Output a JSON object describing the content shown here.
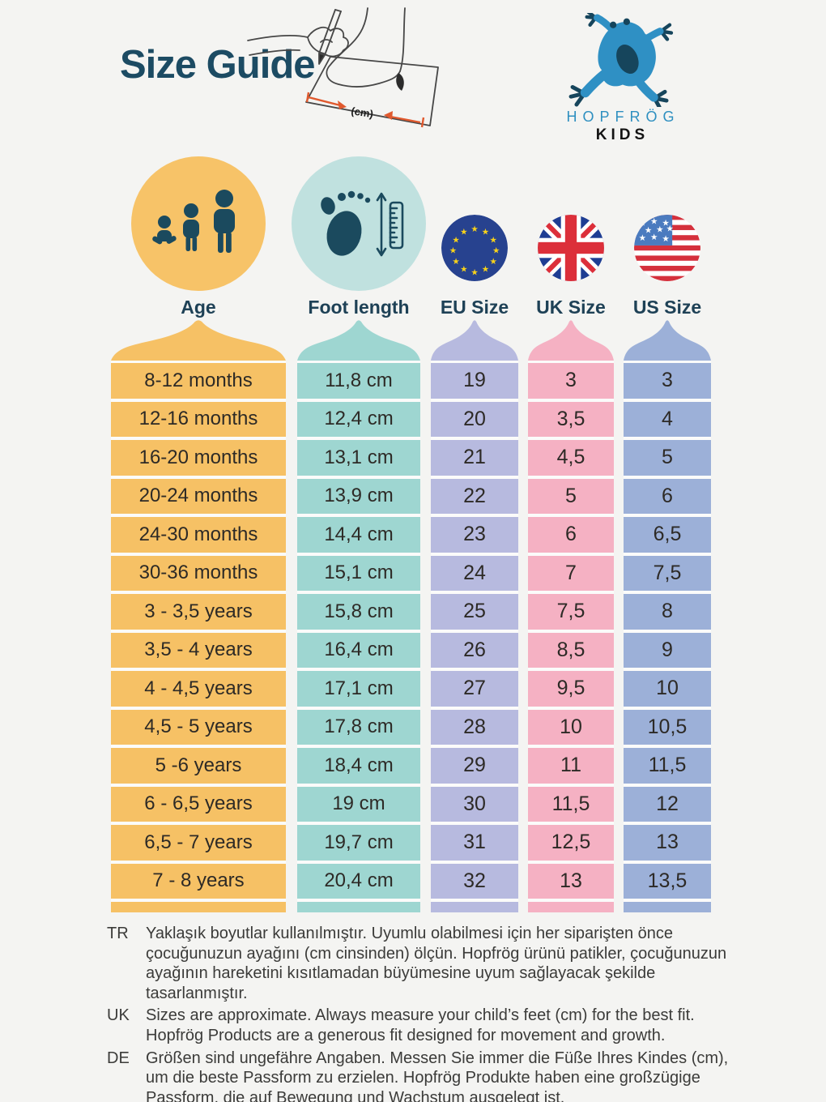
{
  "header": {
    "title": "Size Guide",
    "illustration": {
      "cm_label": "(cm)"
    },
    "brand": {
      "name": "HOPFRÖG",
      "sub": "KIDS"
    }
  },
  "table": {
    "columns": [
      {
        "key": "age",
        "label": "Age",
        "color": "#f6c165",
        "circle_color": "#f7c368",
        "icon": "family-icon",
        "big": true
      },
      {
        "key": "foot",
        "label": "Foot length",
        "color": "#9ed6d1",
        "circle_color": "#c0e1df",
        "icon": "foot-ruler-icon",
        "big": true
      },
      {
        "key": "eu",
        "label": "EU Size",
        "color": "#b7badf",
        "icon": "eu-flag-icon",
        "big": false
      },
      {
        "key": "uk",
        "label": "UK Size",
        "color": "#f5b1c3",
        "icon": "uk-flag-icon",
        "big": false
      },
      {
        "key": "us",
        "label": "US Size",
        "color": "#9cb0d8",
        "icon": "us-flag-icon",
        "big": false
      }
    ],
    "rows": [
      {
        "age": "8-12 months",
        "foot": "11,8 cm",
        "eu": "19",
        "uk": "3",
        "us": "3"
      },
      {
        "age": "12-16 months",
        "foot": "12,4 cm",
        "eu": "20",
        "uk": "3,5",
        "us": "4"
      },
      {
        "age": "16-20 months",
        "foot": "13,1 cm",
        "eu": "21",
        "uk": "4,5",
        "us": "5"
      },
      {
        "age": "20-24 months",
        "foot": "13,9 cm",
        "eu": "22",
        "uk": "5",
        "us": "6"
      },
      {
        "age": "24-30 months",
        "foot": "14,4 cm",
        "eu": "23",
        "uk": "6",
        "us": "6,5"
      },
      {
        "age": "30-36 months",
        "foot": "15,1 cm",
        "eu": "24",
        "uk": "7",
        "us": "7,5"
      },
      {
        "age": "3 - 3,5 years",
        "foot": "15,8 cm",
        "eu": "25",
        "uk": "7,5",
        "us": "8"
      },
      {
        "age": "3,5 - 4 years",
        "foot": "16,4 cm",
        "eu": "26",
        "uk": "8,5",
        "us": "9"
      },
      {
        "age": "4 - 4,5 years",
        "foot": "17,1 cm",
        "eu": "27",
        "uk": "9,5",
        "us": "10"
      },
      {
        "age": "4,5 - 5 years",
        "foot": "17,8 cm",
        "eu": "28",
        "uk": "10",
        "us": "10,5"
      },
      {
        "age": "5 -6 years",
        "foot": "18,4 cm",
        "eu": "29",
        "uk": "11",
        "us": "11,5"
      },
      {
        "age": "6 - 6,5 years",
        "foot": "19 cm",
        "eu": "30",
        "uk": "11,5",
        "us": "12"
      },
      {
        "age": "6,5 - 7 years",
        "foot": "19,7 cm",
        "eu": "31",
        "uk": "12,5",
        "us": "13"
      },
      {
        "age": "7 - 8 years",
        "foot": "20,4 cm",
        "eu": "32",
        "uk": "13",
        "us": "13,5"
      }
    ]
  },
  "chart_data": {
    "type": "table",
    "title": "Size Guide",
    "columns": [
      "Age",
      "Foot length",
      "EU Size",
      "UK Size",
      "US Size"
    ],
    "rows": [
      [
        "8-12 months",
        "11,8 cm",
        "19",
        "3",
        "3"
      ],
      [
        "12-16 months",
        "12,4 cm",
        "20",
        "3,5",
        "4"
      ],
      [
        "16-20 months",
        "13,1 cm",
        "21",
        "4,5",
        "5"
      ],
      [
        "20-24 months",
        "13,9 cm",
        "22",
        "5",
        "6"
      ],
      [
        "24-30 months",
        "14,4 cm",
        "23",
        "6",
        "6,5"
      ],
      [
        "30-36 months",
        "15,1 cm",
        "24",
        "7",
        "7,5"
      ],
      [
        "3 - 3,5 years",
        "15,8 cm",
        "25",
        "7,5",
        "8"
      ],
      [
        "3,5 - 4 years",
        "16,4 cm",
        "26",
        "8,5",
        "9"
      ],
      [
        "4 - 4,5 years",
        "17,1 cm",
        "27",
        "9,5",
        "10"
      ],
      [
        "4,5 - 5 years",
        "17,8 cm",
        "28",
        "10",
        "10,5"
      ],
      [
        "5 -6 years",
        "18,4 cm",
        "29",
        "11",
        "11,5"
      ],
      [
        "6 - 6,5 years",
        "19 cm",
        "30",
        "11,5",
        "12"
      ],
      [
        "6,5 - 7 years",
        "19,7 cm",
        "31",
        "12,5",
        "13"
      ],
      [
        "7 - 8 years",
        "20,4 cm",
        "32",
        "13",
        "13,5"
      ]
    ]
  },
  "footnotes": [
    {
      "lang": "TR",
      "text": "Yaklaşık boyutlar kullanılmıştır. Uyumlu olabilmesi için her siparişten önce çocuğunuzun ayağını (cm cinsinden) ölçün. Hopfrög ürünü patikler, çocuğunuzun ayağının hareketini kısıtlamadan büyümesine uyum sağlayacak şekilde tasarlanmıştır."
    },
    {
      "lang": "UK",
      "text": "Sizes are approximate. Always measure your child’s feet (cm) for the best fit. Hopfrög Products are a generous fit designed for movement and growth."
    },
    {
      "lang": "DE",
      "text": "Größen sind ungefähre Angaben. Messen Sie immer die Füße Ihres Kindes (cm), um die beste Passform zu erzielen. Hopfrög Produkte haben eine großzügige Passform, die auf Bewegung und Wachstum ausgelegt ist."
    }
  ],
  "colors": {
    "background": "#f4f4f2",
    "title": "#1c4b63",
    "icon_dark": "#1b4a5e",
    "brand_blue": "#2f90c4",
    "measure_orange": "#e0592e",
    "age_column": "#f6c165",
    "foot_column": "#9ed6d1",
    "eu_column": "#b7badf",
    "uk_column": "#f5b1c3",
    "us_column": "#9cb0d8"
  }
}
